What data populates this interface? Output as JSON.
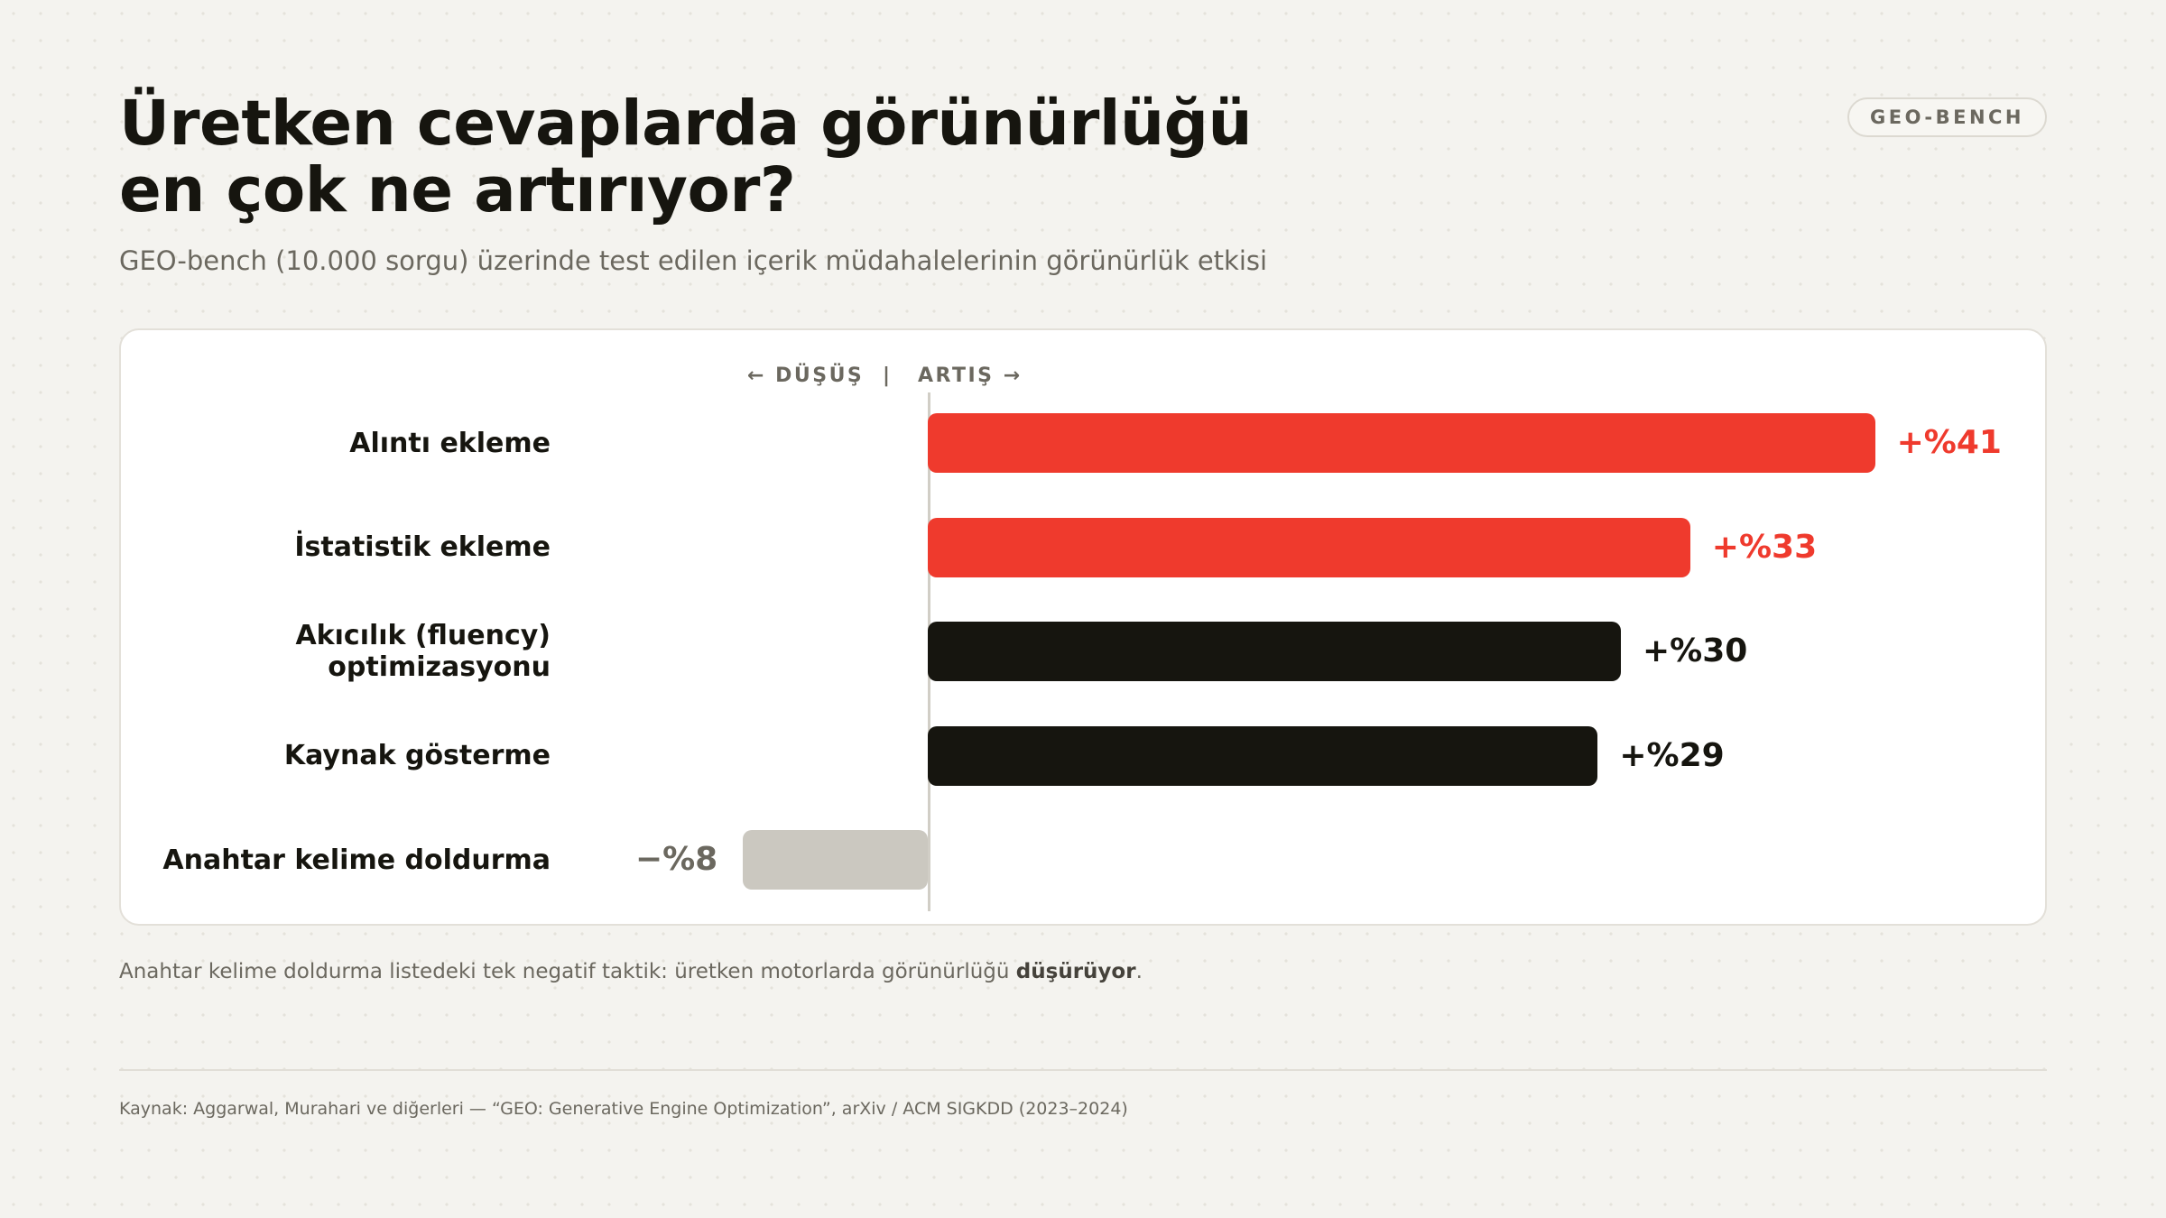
{
  "badge": "GEO-BENCH",
  "header": {
    "title_line1": "Üretken cevaplarda görünürlüğü",
    "title_line2": "en çok ne artırıyor?",
    "subtitle": "GEO-bench (10.000 sorgu) üzerinde test edilen içerik müdahalelerinin görünürlük etkisi"
  },
  "direction": {
    "decrease": "← DÜŞÜŞ",
    "separator": "|",
    "increase": "ARTIŞ →"
  },
  "chart_data": {
    "type": "bar",
    "orientation": "horizontal",
    "categories": [
      [
        "Alıntı ekleme"
      ],
      [
        "İstatistik ekleme"
      ],
      [
        "Akıcılık (fluency)",
        "optimizasyonu"
      ],
      [
        "Kaynak gösterme"
      ],
      [
        "Anahtar kelime doldurma"
      ]
    ],
    "values": [
      41,
      33,
      30,
      29,
      -8
    ],
    "value_labels": [
      "+%41",
      "+%33",
      "+%30",
      "+%29",
      "−%8"
    ],
    "colors": [
      "#ef3a2d",
      "#ef3a2d",
      "#16150f",
      "#16150f",
      "#cbc8c0"
    ],
    "label_colors": [
      "#ef3a2d",
      "#ef3a2d",
      "#16150f",
      "#16150f",
      "#6b685f"
    ],
    "baseline": 0
  },
  "note": {
    "text": "Anahtar kelime doldurma listedeki tek negatif taktik: üretken motorlarda görünürlüğü ",
    "emphasis": "düşürüyor",
    "end": "."
  },
  "source": "Kaynak: Aggarwal, Murahari ve diğerleri — “GEO: Generative Engine Optimization”, arXiv / ACM SIGKDD (2023–2024)"
}
